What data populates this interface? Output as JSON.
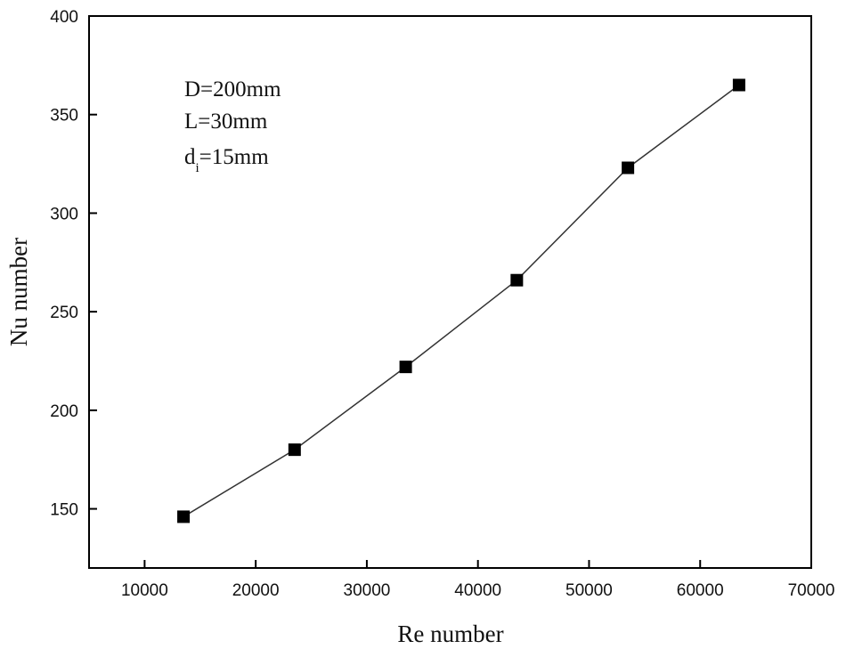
{
  "chart_data": {
    "type": "line",
    "title": "",
    "xlabel": "Re number",
    "ylabel": "Nu number",
    "xlim": [
      5000,
      70000
    ],
    "ylim": [
      120,
      400
    ],
    "xticks": [
      10000,
      20000,
      30000,
      40000,
      50000,
      60000,
      70000
    ],
    "yticks": [
      150,
      200,
      250,
      300,
      350,
      400
    ],
    "xtick_labels": [
      "10000",
      "20000",
      "30000",
      "40000",
      "50000",
      "60000",
      "70000"
    ],
    "ytick_labels": [
      "150",
      "200",
      "250",
      "300",
      "350",
      "400"
    ],
    "grid": false,
    "legend": "none",
    "marker": "square",
    "line_color": "#333333",
    "marker_color": "#000000",
    "series": [
      {
        "x": [
          13500,
          23500,
          33500,
          43500,
          53500,
          63500
        ],
        "values": [
          146,
          180,
          222,
          266,
          323,
          365
        ]
      }
    ],
    "annotations": {
      "line1": "D=200mm",
      "line2": "L=30mm",
      "line3_main": "d",
      "line3_sub": "i",
      "line3_rest": "=15mm"
    }
  }
}
